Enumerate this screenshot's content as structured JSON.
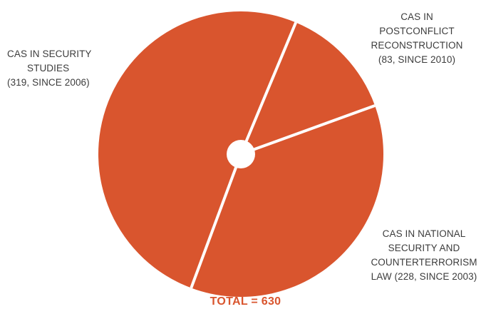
{
  "chart_data": {
    "type": "pie",
    "slices": [
      {
        "name_lines": [
          "CAS IN SECURITY",
          "STUDIES",
          "(319, SINCE 2006)"
        ],
        "value": 319
      },
      {
        "name_lines": [
          "CAS IN",
          "POSTCONFLICT",
          "RECONSTRUCTION",
          "(83, SINCE 2010)"
        ],
        "value": 83
      },
      {
        "name_lines": [
          "CAS IN NATIONAL",
          "SECURITY AND",
          "COUNTERTERRORISM",
          "LAW (228, SINCE 2003)"
        ],
        "value": 228
      }
    ],
    "total_label": "TOTAL = 630",
    "colors": {
      "slice": "#d9552e",
      "separator": "#ffffff",
      "total": "#d9552e",
      "text": "#3c3c3c"
    }
  }
}
